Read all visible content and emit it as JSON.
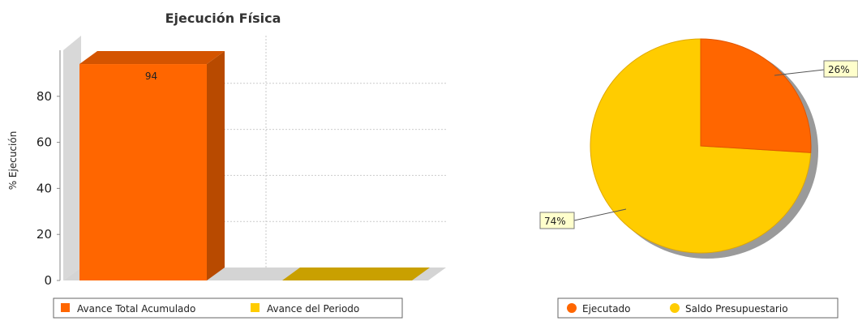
{
  "chart_data": [
    {
      "type": "bar",
      "title": "Ejecución Física",
      "ylabel": "% Ejecución",
      "xlabel": "",
      "ylim": [
        0,
        100
      ],
      "yticks": [
        0,
        20,
        40,
        60,
        80
      ],
      "grid": true,
      "legend_position": "bottom",
      "series": [
        {
          "name": "Avance Total Acumulado",
          "color": "#ff6600",
          "value": 94,
          "value_label": "94"
        },
        {
          "name": "Avance del Periodo",
          "color": "#ffcc00",
          "value": 0
        }
      ]
    },
    {
      "type": "pie",
      "legend_position": "bottom",
      "slices": [
        {
          "name": "Ejecutado",
          "value": 26,
          "label": "26%",
          "color": "#ff6600"
        },
        {
          "name": "Saldo Presupuestario",
          "value": 74,
          "label": "74%",
          "color": "#ffcc00"
        }
      ]
    }
  ]
}
